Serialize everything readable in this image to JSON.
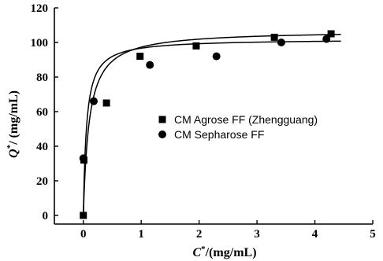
{
  "chart_data": {
    "type": "scatter",
    "xlabel_symbol": "C",
    "xlabel_sup": "*",
    "xlabel_unit": "/(mg/mL)",
    "ylabel_symbol": "Q",
    "ylabel_sup": "*",
    "ylabel_unit": "/ (mg/mL)",
    "xlim": [
      -0.5,
      5
    ],
    "ylim": [
      -5,
      120
    ],
    "x_ticks": [
      0,
      1,
      2,
      3,
      4,
      5
    ],
    "y_ticks": [
      0,
      20,
      40,
      60,
      80,
      100,
      120
    ],
    "x_tick_labels": [
      "0",
      "1",
      "2",
      "3",
      "4",
      "5"
    ],
    "y_tick_labels": [
      "0",
      "20",
      "40",
      "60",
      "80",
      "100",
      "120"
    ],
    "legend_position": "right-middle",
    "series": [
      {
        "name": "CM Agrose FF (Zhengguang)",
        "marker": "square",
        "color": "#000000",
        "points": [
          [
            0,
            0
          ],
          [
            0.01,
            32
          ],
          [
            0.4,
            65
          ],
          [
            0.98,
            92
          ],
          [
            1.95,
            98
          ],
          [
            3.3,
            103
          ],
          [
            4.28,
            105
          ]
        ],
        "fit": {
          "qmax": 102,
          "kd": 0.055
        }
      },
      {
        "name": "CM Sepharose FF",
        "marker": "circle",
        "color": "#000000",
        "points": [
          [
            0,
            33
          ],
          [
            0.18,
            66
          ],
          [
            1.15,
            87
          ],
          [
            2.3,
            92
          ],
          [
            3.42,
            100
          ],
          [
            4.2,
            102
          ]
        ],
        "fit": {
          "qmax": 107,
          "kd": 0.1
        }
      }
    ]
  }
}
